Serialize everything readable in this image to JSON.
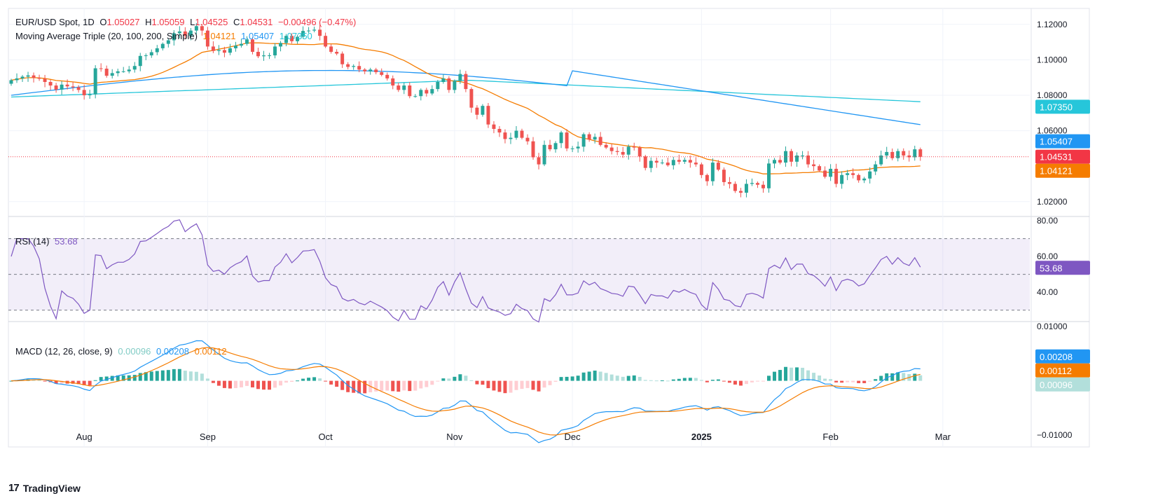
{
  "header": {
    "symbol": "EUR/USD Spot, 1D",
    "o_label": "O",
    "o": "1.05027",
    "h_label": "H",
    "h": "1.05059",
    "l_label": "L",
    "l": "1.04525",
    "c_label": "C",
    "c": "1.04531",
    "chg": "−0.00496 (−0.47%)"
  },
  "ma_legend": {
    "label": "Moving Average Triple (20, 100, 200, Simple)",
    "v20": "1.04121",
    "v100": "1.05407",
    "v200": "1.07350"
  },
  "rsi_legend": {
    "label": "RSI (14)",
    "value": "53.68"
  },
  "macd_legend": {
    "label": "MACD (12, 26, close, 9)",
    "hist": "0.00096",
    "macd": "0.00208",
    "signal": "0.00112"
  },
  "brand": {
    "name": "TradingView"
  },
  "colors": {
    "up": "#26a69a",
    "down": "#ef5350",
    "ma20": "#f57c00",
    "ma100": "#2196f3",
    "ma200": "#26c6da",
    "rsi": "#7e57c2",
    "macd": "#2196f3",
    "signal": "#f57c00",
    "hist_up": "#26a69a",
    "hist_up_light": "#b2dfdb",
    "hist_down": "#ef5350",
    "hist_down_light": "#ffcdd2",
    "last": "#f23645",
    "ma200_tag": "#26c6da"
  },
  "chart_data": {
    "type": "candlestick",
    "price_axis": {
      "ticks": [
        "1.12000",
        "1.10000",
        "1.08000",
        "1.06000",
        "1.02000"
      ],
      "range": [
        1.012,
        1.129
      ]
    },
    "price_tags": [
      {
        "value": 1.0735,
        "label": "1.07350",
        "color": "#26c6da"
      },
      {
        "value": 1.05407,
        "label": "1.05407",
        "color": "#2196f3"
      },
      {
        "value": 1.04531,
        "label": "1.04531",
        "color": "#f23645"
      },
      {
        "value": 1.04121,
        "label": "1.04121",
        "color": "#f57c00"
      }
    ],
    "rsi_axis": {
      "ticks": [
        "80.00",
        "60.00",
        "40.00"
      ],
      "range": [
        24,
        82
      ],
      "bands": [
        70,
        30
      ],
      "mid": 50
    },
    "rsi_tag": {
      "value": 53.68,
      "label": "53.68"
    },
    "macd_axis": {
      "ticks": [
        "0.01000",
        "−0.01000"
      ],
      "range": [
        -0.0122,
        0.0108
      ]
    },
    "macd_tags": [
      {
        "value": 0.0045,
        "label": "0.00208",
        "color": "#2196f3"
      },
      {
        "value": 0.002,
        "label": "0.00112",
        "color": "#f57c00"
      },
      {
        "value": 0.0002,
        "label": "0.00096",
        "color": "#b2dfdb"
      }
    ],
    "time_axis": {
      "labels": [
        {
          "label": "Aug",
          "bar": 13
        },
        {
          "label": "Sep",
          "bar": 35
        },
        {
          "label": "Oct",
          "bar": 56
        },
        {
          "label": "Nov",
          "bar": 79
        },
        {
          "label": "Dec",
          "bar": 100
        },
        {
          "label": "2025",
          "bar": 123,
          "bold": true
        },
        {
          "label": "Feb",
          "bar": 146
        },
        {
          "label": "Mar",
          "bar": 166
        }
      ],
      "total_bars": 182
    },
    "close": [
      1.0885,
      1.0895,
      1.0905,
      1.0912,
      1.0898,
      1.0893,
      1.0875,
      1.0855,
      1.0832,
      1.086,
      1.085,
      1.0845,
      1.083,
      1.08,
      1.0805,
      1.0952,
      1.095,
      1.091,
      1.0925,
      1.0935,
      1.0935,
      1.0945,
      1.0965,
      1.1022,
      1.1025,
      1.1043,
      1.1065,
      1.109,
      1.111,
      1.115,
      1.116,
      1.1135,
      1.1165,
      1.119,
      1.1165,
      1.1075,
      1.105,
      1.1055,
      1.104,
      1.1065,
      1.108,
      1.109,
      1.1115,
      1.1045,
      1.102,
      1.1025,
      1.1025,
      1.1075,
      1.1095,
      1.1135,
      1.1105,
      1.113,
      1.1163,
      1.1165,
      1.117,
      1.1135,
      1.1075,
      1.1045,
      1.1035,
      1.0975,
      1.096,
      1.0965,
      1.0945,
      1.0935,
      1.0945,
      1.093,
      1.0915,
      1.0895,
      1.0855,
      1.083,
      1.0855,
      1.0795,
      1.0795,
      1.083,
      1.081,
      1.0835,
      1.0875,
      1.0895,
      1.083,
      1.088,
      1.092,
      1.0835,
      1.073,
      1.069,
      1.074,
      1.0635,
      1.061,
      1.059,
      1.0553,
      1.056,
      1.06,
      1.056,
      1.054,
      1.045,
      1.041,
      1.052,
      1.0495,
      1.053,
      1.059,
      1.05,
      1.05,
      1.051,
      1.058,
      1.055,
      1.0565,
      1.052,
      1.0505,
      1.0485,
      1.048,
      1.0465,
      1.051,
      1.0505,
      1.0455,
      1.039,
      1.043,
      1.042,
      1.042,
      1.0405,
      1.0435,
      1.0425,
      1.0435,
      1.042,
      1.041,
      1.035,
      1.0315,
      1.042,
      1.038,
      1.031,
      1.03,
      1.026,
      1.025,
      1.03,
      1.0305,
      1.0295,
      1.0275,
      1.0415,
      1.0435,
      1.042,
      1.0485,
      1.0425,
      1.046,
      1.046,
      1.041,
      1.04,
      1.0375,
      1.034,
      1.0385,
      1.03,
      1.035,
      1.036,
      1.035,
      1.032,
      1.033,
      1.037,
      1.041,
      1.046,
      1.048,
      1.0445,
      1.0485,
      1.046,
      1.045,
      1.0495,
      1.0453
    ]
  }
}
